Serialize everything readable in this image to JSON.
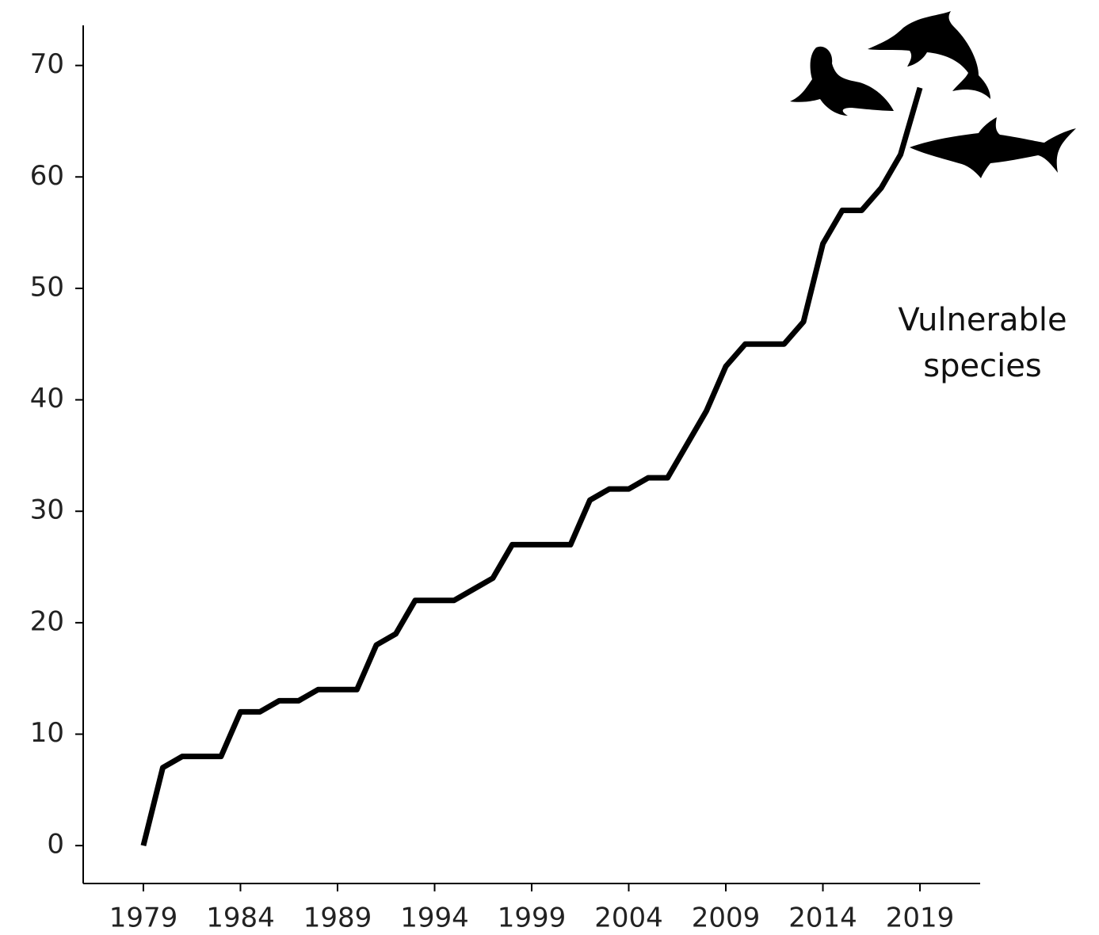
{
  "chart_data": {
    "type": "line",
    "x": [
      1979,
      1980,
      1981,
      1982,
      1983,
      1984,
      1985,
      1986,
      1987,
      1988,
      1989,
      1990,
      1991,
      1992,
      1993,
      1994,
      1995,
      1996,
      1997,
      1998,
      1999,
      2000,
      2001,
      2002,
      2003,
      2004,
      2005,
      2006,
      2007,
      2008,
      2009,
      2010,
      2011,
      2012,
      2013,
      2014,
      2015,
      2016,
      2017,
      2018,
      2019
    ],
    "series": [
      {
        "color": "#000000",
        "values": [
          0,
          7,
          8,
          8,
          8,
          12,
          12,
          13,
          13,
          14,
          14,
          14,
          18,
          19,
          22,
          22,
          22,
          23,
          24,
          27,
          27,
          27,
          27,
          31,
          32,
          32,
          33,
          33,
          36,
          39,
          43,
          45,
          45,
          45,
          47,
          54,
          57,
          57,
          59,
          62,
          68
        ]
      }
    ],
    "xlim": [
      1975.9,
      2022.1
    ],
    "xticks": [
      1979,
      1984,
      1989,
      1994,
      1999,
      2004,
      2009,
      2014,
      2019
    ],
    "ylim": [
      -3.4,
      73.6
    ],
    "yticks": [
      0,
      10,
      20,
      30,
      40,
      50,
      60,
      70
    ],
    "annotation": [
      "Vulnerable",
      "species"
    ]
  }
}
